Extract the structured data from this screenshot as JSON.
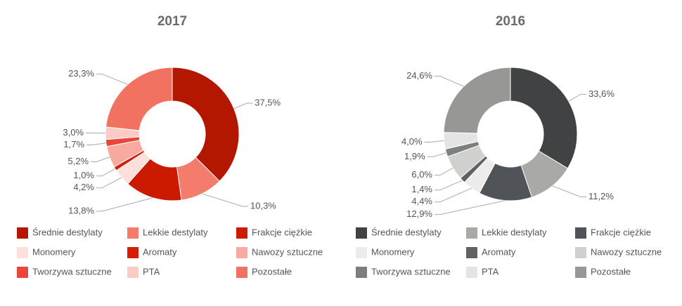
{
  "chart_data": [
    {
      "type": "pie",
      "title": "2017",
      "categories": [
        "Średnie destylaty",
        "Lekkie destylaty",
        "Frakcje ciężkie",
        "Monomery",
        "Aromaty",
        "Nawozy sztuczne",
        "Tworzywa sztuczne",
        "PTA",
        "Pozostałe"
      ],
      "values": [
        37.5,
        10.3,
        13.8,
        4.2,
        1.0,
        5.2,
        1.7,
        3.0,
        23.3
      ],
      "value_labels": [
        "37,5%",
        "10,3%",
        "13,8%",
        "4,2%",
        "1,0%",
        "5,2%",
        "1,7%",
        "3,0%",
        "23,3%"
      ],
      "colors": [
        "#b31700",
        "#f47c6c",
        "#cc1a00",
        "#fde0dc",
        "#d41e05",
        "#f9aaa0",
        "#e8473a",
        "#fbcbc4",
        "#f27262"
      ]
    },
    {
      "type": "pie",
      "title": "2016",
      "categories": [
        "Średnie destylaty",
        "Lekkie destylaty",
        "Frakcje ciężkie",
        "Monomery",
        "Aromaty",
        "Nawozy sztuczne",
        "Tworzywa sztuczne",
        "PTA",
        "Pozostałe"
      ],
      "values": [
        33.6,
        11.2,
        12.9,
        4.4,
        1.4,
        6.0,
        1.9,
        4.0,
        24.6
      ],
      "value_labels": [
        "33,6%",
        "11,2%",
        "12,9%",
        "4,4%",
        "1,4%",
        "6,0%",
        "1,9%",
        "4,0%",
        "24,6%"
      ],
      "colors": [
        "#414244",
        "#a9aaa5",
        "#505357",
        "#ececec",
        "#606264",
        "#d0d1cf",
        "#7c7f80",
        "#e4e4e4",
        "#979796"
      ]
    }
  ]
}
